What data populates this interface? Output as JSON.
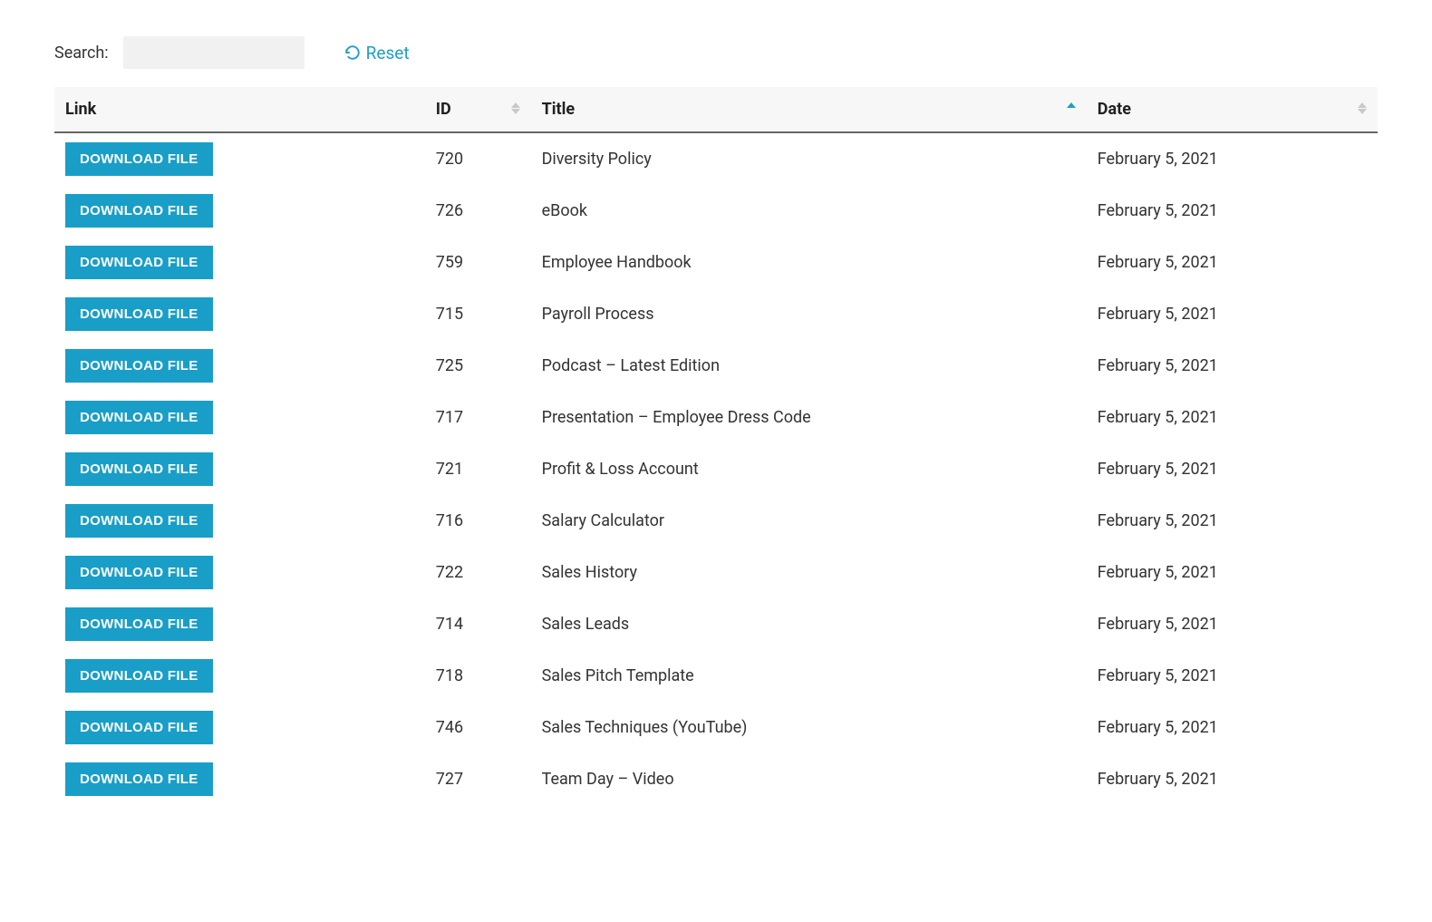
{
  "toolbar": {
    "search_label": "Search:",
    "search_value": "",
    "reset_label": "Reset"
  },
  "table": {
    "download_button_label": "DOWNLOAD FILE",
    "columns": {
      "link": {
        "label": "Link",
        "sortable": false
      },
      "id": {
        "label": "ID",
        "sortable": true,
        "sorted": null
      },
      "title": {
        "label": "Title",
        "sortable": true,
        "sorted": "asc"
      },
      "date": {
        "label": "Date",
        "sortable": true,
        "sorted": null
      }
    },
    "rows": [
      {
        "id": "720",
        "title": "Diversity Policy",
        "date": "February 5, 2021"
      },
      {
        "id": "726",
        "title": "eBook",
        "date": "February 5, 2021"
      },
      {
        "id": "759",
        "title": "Employee Handbook",
        "date": "February 5, 2021"
      },
      {
        "id": "715",
        "title": "Payroll Process",
        "date": "February 5, 2021"
      },
      {
        "id": "725",
        "title": "Podcast – Latest Edition",
        "date": "February 5, 2021"
      },
      {
        "id": "717",
        "title": "Presentation – Employee Dress Code",
        "date": "February 5, 2021"
      },
      {
        "id": "721",
        "title": "Profit & Loss Account",
        "date": "February 5, 2021"
      },
      {
        "id": "716",
        "title": "Salary Calculator",
        "date": "February 5, 2021"
      },
      {
        "id": "722",
        "title": "Sales History",
        "date": "February 5, 2021"
      },
      {
        "id": "714",
        "title": "Sales Leads",
        "date": "February 5, 2021"
      },
      {
        "id": "718",
        "title": "Sales Pitch Template",
        "date": "February 5, 2021"
      },
      {
        "id": "746",
        "title": "Sales Techniques (YouTube)",
        "date": "February 5, 2021"
      },
      {
        "id": "727",
        "title": "Team Day – Video",
        "date": "February 5, 2021"
      }
    ]
  },
  "colors": {
    "accent": "#199ec8",
    "link": "#1f9fc7",
    "header_bg": "#f7f7f7",
    "header_border": "#666666",
    "sort_inactive": "#c9c9c9"
  }
}
